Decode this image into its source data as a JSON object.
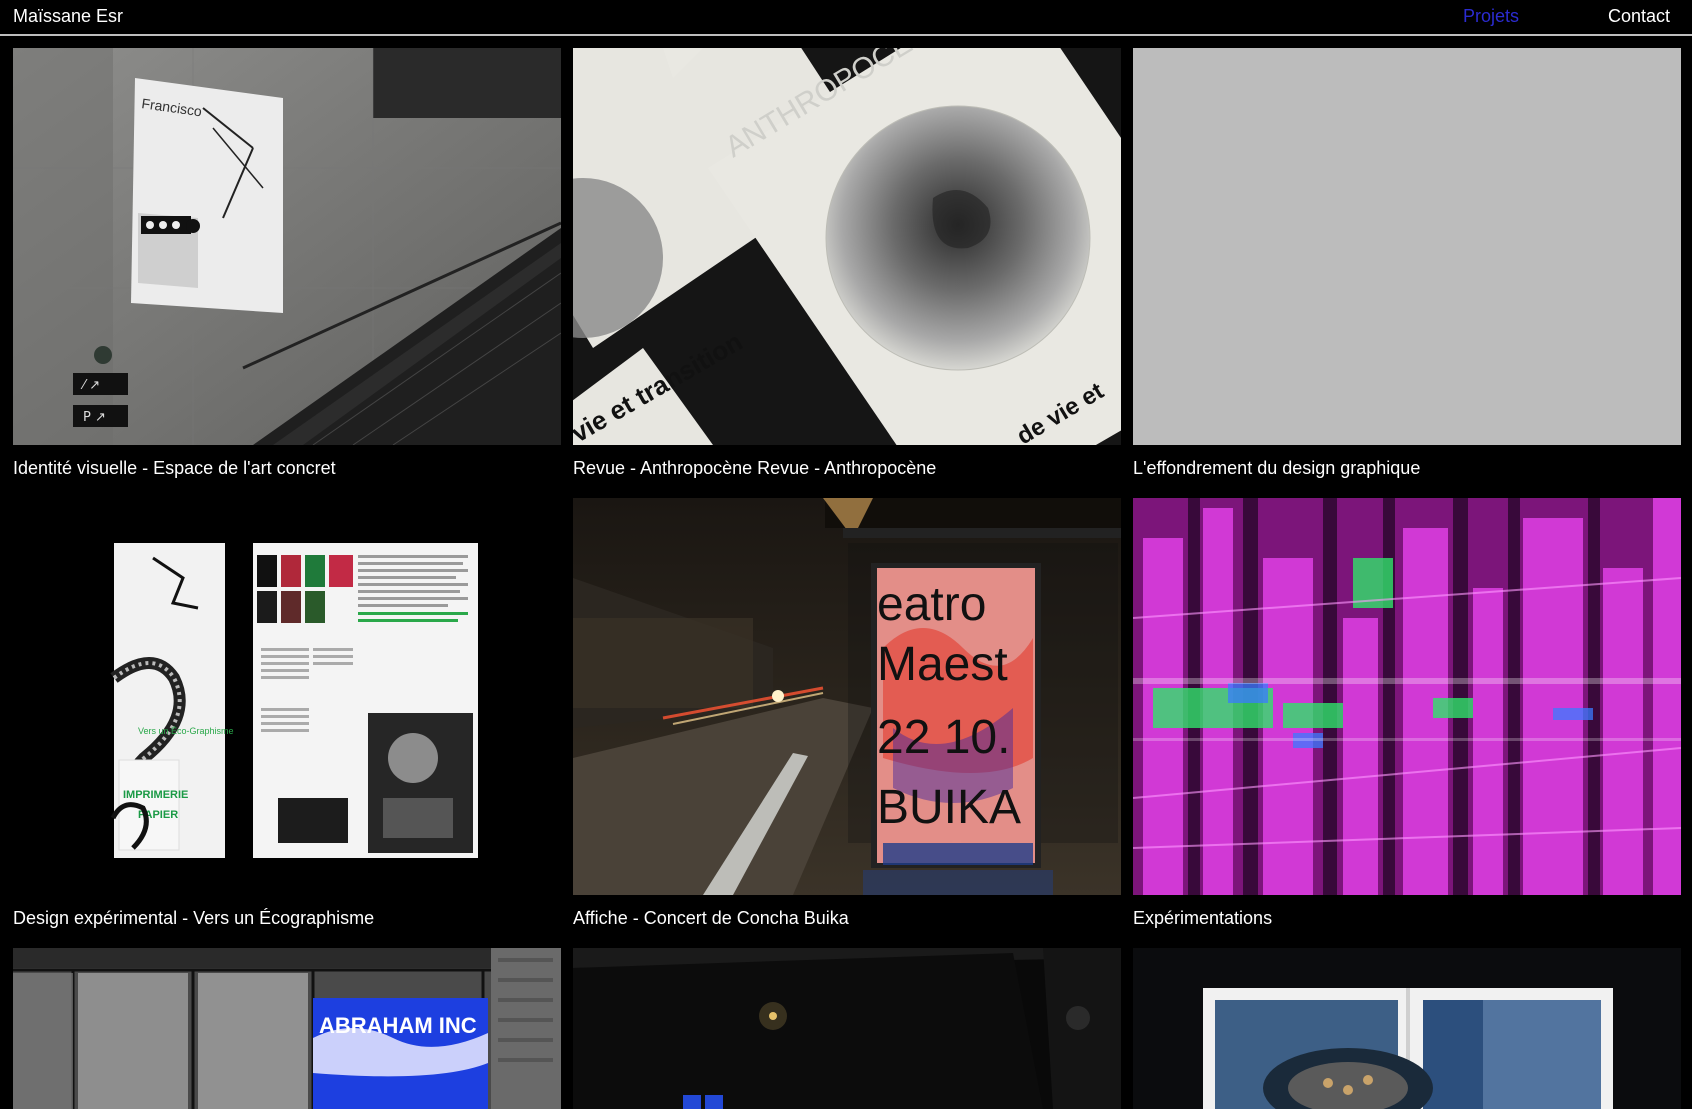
{
  "header": {
    "site_title": "Maïssane Esr",
    "nav": [
      {
        "label": "Projets",
        "active": true
      },
      {
        "label": "Contact",
        "active": false
      }
    ]
  },
  "colors": {
    "background": "#000000",
    "text": "#ffffff",
    "nav_active": "#2b2bd0",
    "placeholder_gray": "#bcbcbc"
  },
  "projects": [
    {
      "caption": "Identité visuelle - Espace de l'art concret",
      "thumbnail": "poster-in-stairwell"
    },
    {
      "caption": "Revue - Anthropocène Revue - Anthropocène",
      "thumbnail": "anthropocene-magazine-covers"
    },
    {
      "caption": "L'effondrement du design graphique",
      "thumbnail": "gray-placeholder"
    },
    {
      "caption": "Design expérimental - Vers un Écographisme",
      "thumbnail": "booklet-spread"
    },
    {
      "caption": "Affiche - Concert de Concha Buika",
      "thumbnail": "bus-stop-poster-night"
    },
    {
      "caption": "Expérimentations",
      "thumbnail": "magenta-glitch-city"
    },
    {
      "caption": "",
      "thumbnail": "blue-poster-glass-building"
    },
    {
      "caption": "",
      "thumbnail": "dark-night-street"
    },
    {
      "caption": "",
      "thumbnail": "open-magazine-blue-photo"
    }
  ],
  "thumb_text": {
    "anthropocene_word": "ANTHROPOCÈNE",
    "vie_transition": "vie et transition",
    "de_vie_et": "de vie et",
    "buika_line1": "eatro",
    "buika_line2": "Maest",
    "buika_line3": "22 10.",
    "buika_line4": "BUIKA",
    "abraham_word": "ABRAHAM INC",
    "eco_graphisme": "Vers un Éco-Graphisme",
    "imprimerie": "IMPRIMERIE",
    "papier": "PAPIER"
  }
}
